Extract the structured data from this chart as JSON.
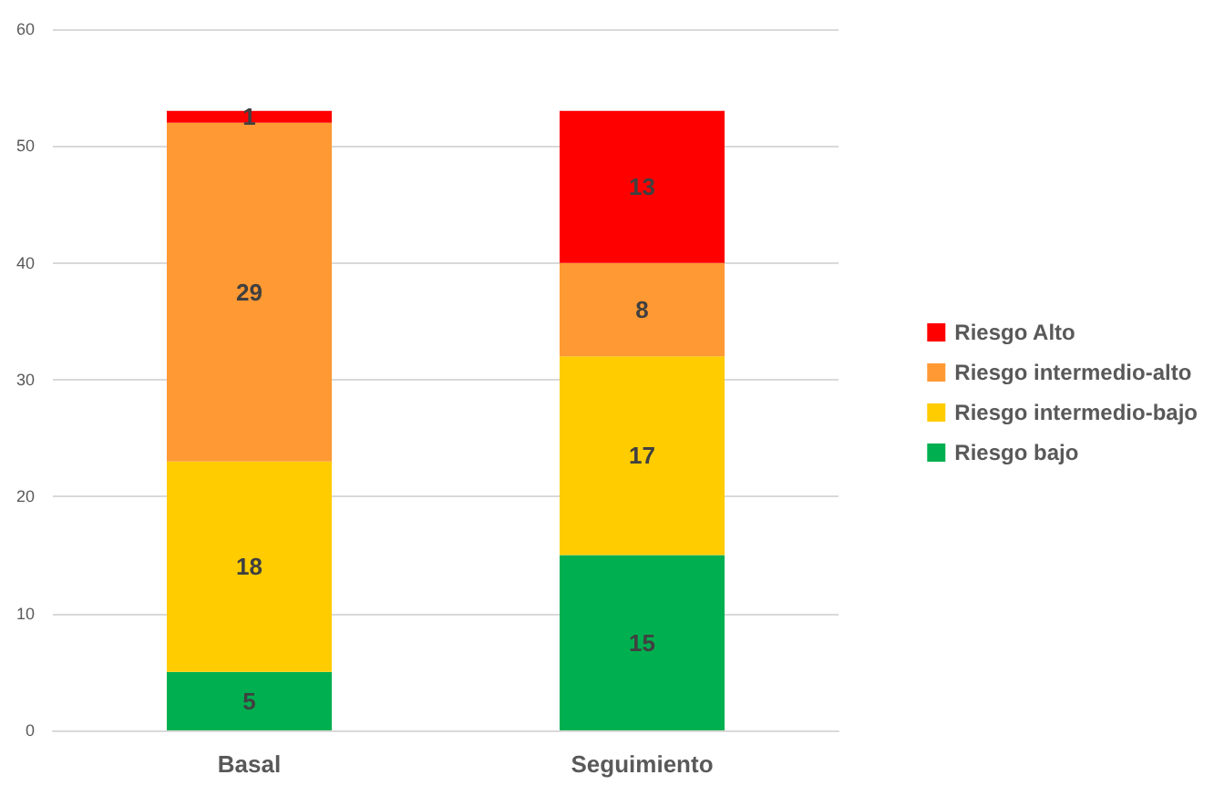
{
  "chart_data": {
    "type": "bar",
    "stacked": true,
    "categories": [
      "Basal",
      "Seguimiento"
    ],
    "series": [
      {
        "name": "Riesgo bajo",
        "color": "#00b050",
        "values": [
          5,
          15
        ]
      },
      {
        "name": "Riesgo intermedio-bajo",
        "color": "#ffcc00",
        "values": [
          18,
          17
        ]
      },
      {
        "name": "Riesgo intermedio-alto",
        "color": "#ff9933",
        "values": [
          29,
          8
        ]
      },
      {
        "name": "Riesgo Alto",
        "color": "#ff0000",
        "values": [
          1,
          13
        ]
      }
    ],
    "ylim": [
      0,
      60
    ],
    "yticks": [
      0,
      10,
      20,
      30,
      40,
      50,
      60
    ],
    "grid": "y",
    "legend": "right",
    "data_labels": true
  }
}
